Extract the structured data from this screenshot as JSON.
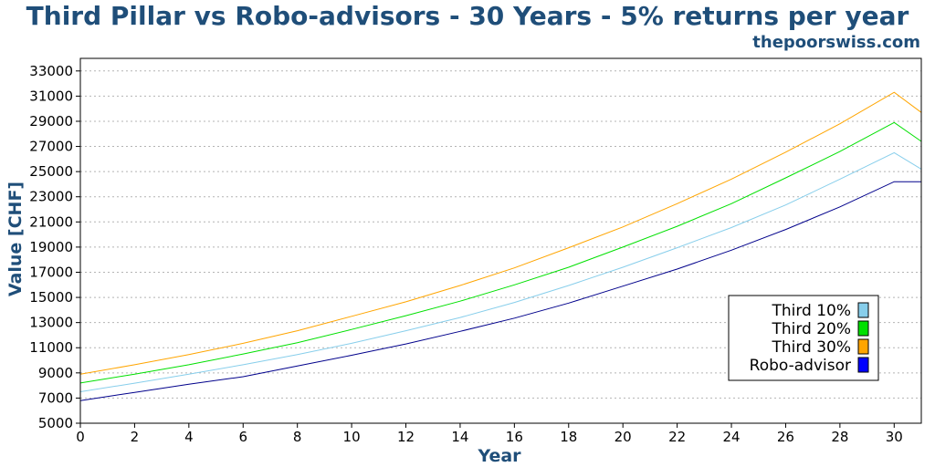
{
  "chart_data": {
    "type": "line",
    "title": "Third Pillar vs Robo-advisors - 30 Years - 5% returns per year",
    "subtitle": "thepoorswiss.com",
    "xlabel": "Year",
    "ylabel": "Value [CHF]",
    "xlim": [
      0,
      31
    ],
    "ylim": [
      5000,
      34000
    ],
    "xticks": [
      0,
      2,
      4,
      6,
      8,
      10,
      12,
      14,
      16,
      18,
      20,
      22,
      24,
      26,
      28,
      30
    ],
    "yticks": [
      5000,
      7000,
      9000,
      11000,
      13000,
      15000,
      17000,
      19000,
      21000,
      23000,
      25000,
      27000,
      29000,
      31000,
      33000
    ],
    "grid": "horizontal-dotted",
    "legend_position": "bottom-right",
    "series": [
      {
        "name": "Third 10%",
        "color": "#87ceeb",
        "x": [
          0,
          2,
          4,
          6,
          8,
          10,
          12,
          14,
          16,
          18,
          20,
          22,
          24,
          26,
          28,
          30,
          31
        ],
        "y": [
          7500,
          8180,
          8890,
          9650,
          10450,
          11350,
          12350,
          13400,
          14600,
          15950,
          17400,
          18950,
          20550,
          22350,
          24400,
          26500,
          25200
        ]
      },
      {
        "name": "Third 20%",
        "color": "#00e000",
        "x": [
          0,
          2,
          4,
          6,
          8,
          10,
          12,
          14,
          16,
          18,
          20,
          22,
          24,
          26,
          28,
          30,
          31
        ],
        "y": [
          8200,
          8900,
          9650,
          10500,
          11400,
          12450,
          13550,
          14700,
          16000,
          17400,
          19000,
          20650,
          22450,
          24500,
          26600,
          28900,
          27400
        ]
      },
      {
        "name": "Third 30%",
        "color": "#ffa500",
        "x": [
          0,
          2,
          4,
          6,
          8,
          10,
          12,
          14,
          16,
          18,
          20,
          22,
          24,
          26,
          28,
          30,
          31
        ],
        "y": [
          8900,
          9650,
          10450,
          11350,
          12350,
          13500,
          14650,
          15950,
          17350,
          18950,
          20600,
          22450,
          24400,
          26550,
          28800,
          31300,
          29700
        ]
      },
      {
        "name": "Robo-advisor",
        "color": "#00008b",
        "x": [
          0,
          2,
          4,
          6,
          8,
          10,
          12,
          14,
          16,
          18,
          20,
          22,
          24,
          26,
          28,
          30,
          31
        ],
        "y": [
          6800,
          7450,
          8100,
          8700,
          9550,
          10400,
          11300,
          12300,
          13350,
          14550,
          15900,
          17250,
          18750,
          20400,
          22200,
          24200,
          24200
        ]
      }
    ],
    "legend_swatches": [
      "#87ceeb",
      "#00e000",
      "#ffa500",
      "#0000ff"
    ]
  }
}
